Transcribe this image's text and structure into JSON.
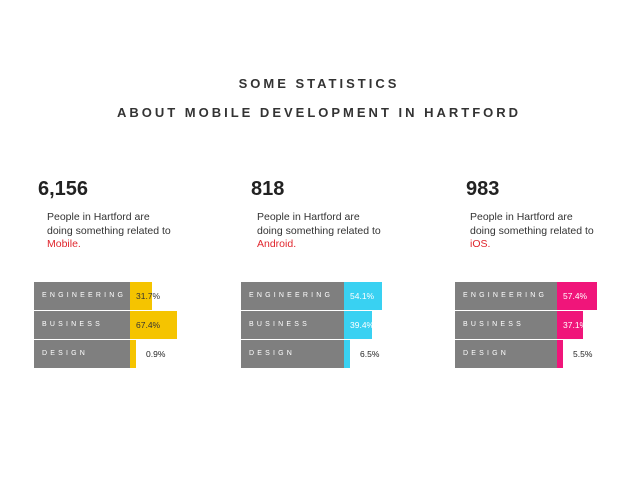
{
  "title_line1": "SOME STATISTICS",
  "title_line2": "ABOUT MOBILE DEVELOPMENT IN HARTFORD",
  "chart_data": [
    {
      "type": "bar",
      "headline_value": "6,156",
      "description": "People in Hartford are doing something related to",
      "highlight": "Mobile.",
      "color": "#f5c400",
      "categories": [
        "ENGINEERING",
        "BUSINESS",
        "DESIGN"
      ],
      "values": [
        31.7,
        67.4,
        0.9
      ],
      "value_labels": [
        "31.7%",
        "67.4%",
        "0.9%"
      ]
    },
    {
      "type": "bar",
      "headline_value": "818",
      "description": "People in Hartford are doing something related to",
      "highlight": "Android.",
      "color": "#39d1f2",
      "categories": [
        "ENGINEERING",
        "BUSINESS",
        "DESIGN"
      ],
      "values": [
        54.1,
        39.4,
        6.5
      ],
      "value_labels": [
        "54.1%",
        "39.4%",
        "6.5%"
      ]
    },
    {
      "type": "bar",
      "headline_value": "983",
      "description": "People in Hartford are doing something related to",
      "highlight": "iOS.",
      "color": "#f0157a",
      "categories": [
        "ENGINEERING",
        "BUSINESS",
        "DESIGN"
      ],
      "values": [
        57.4,
        37.1,
        5.5
      ],
      "value_labels": [
        "57.4%",
        "37.1%",
        "5.5%"
      ]
    }
  ]
}
